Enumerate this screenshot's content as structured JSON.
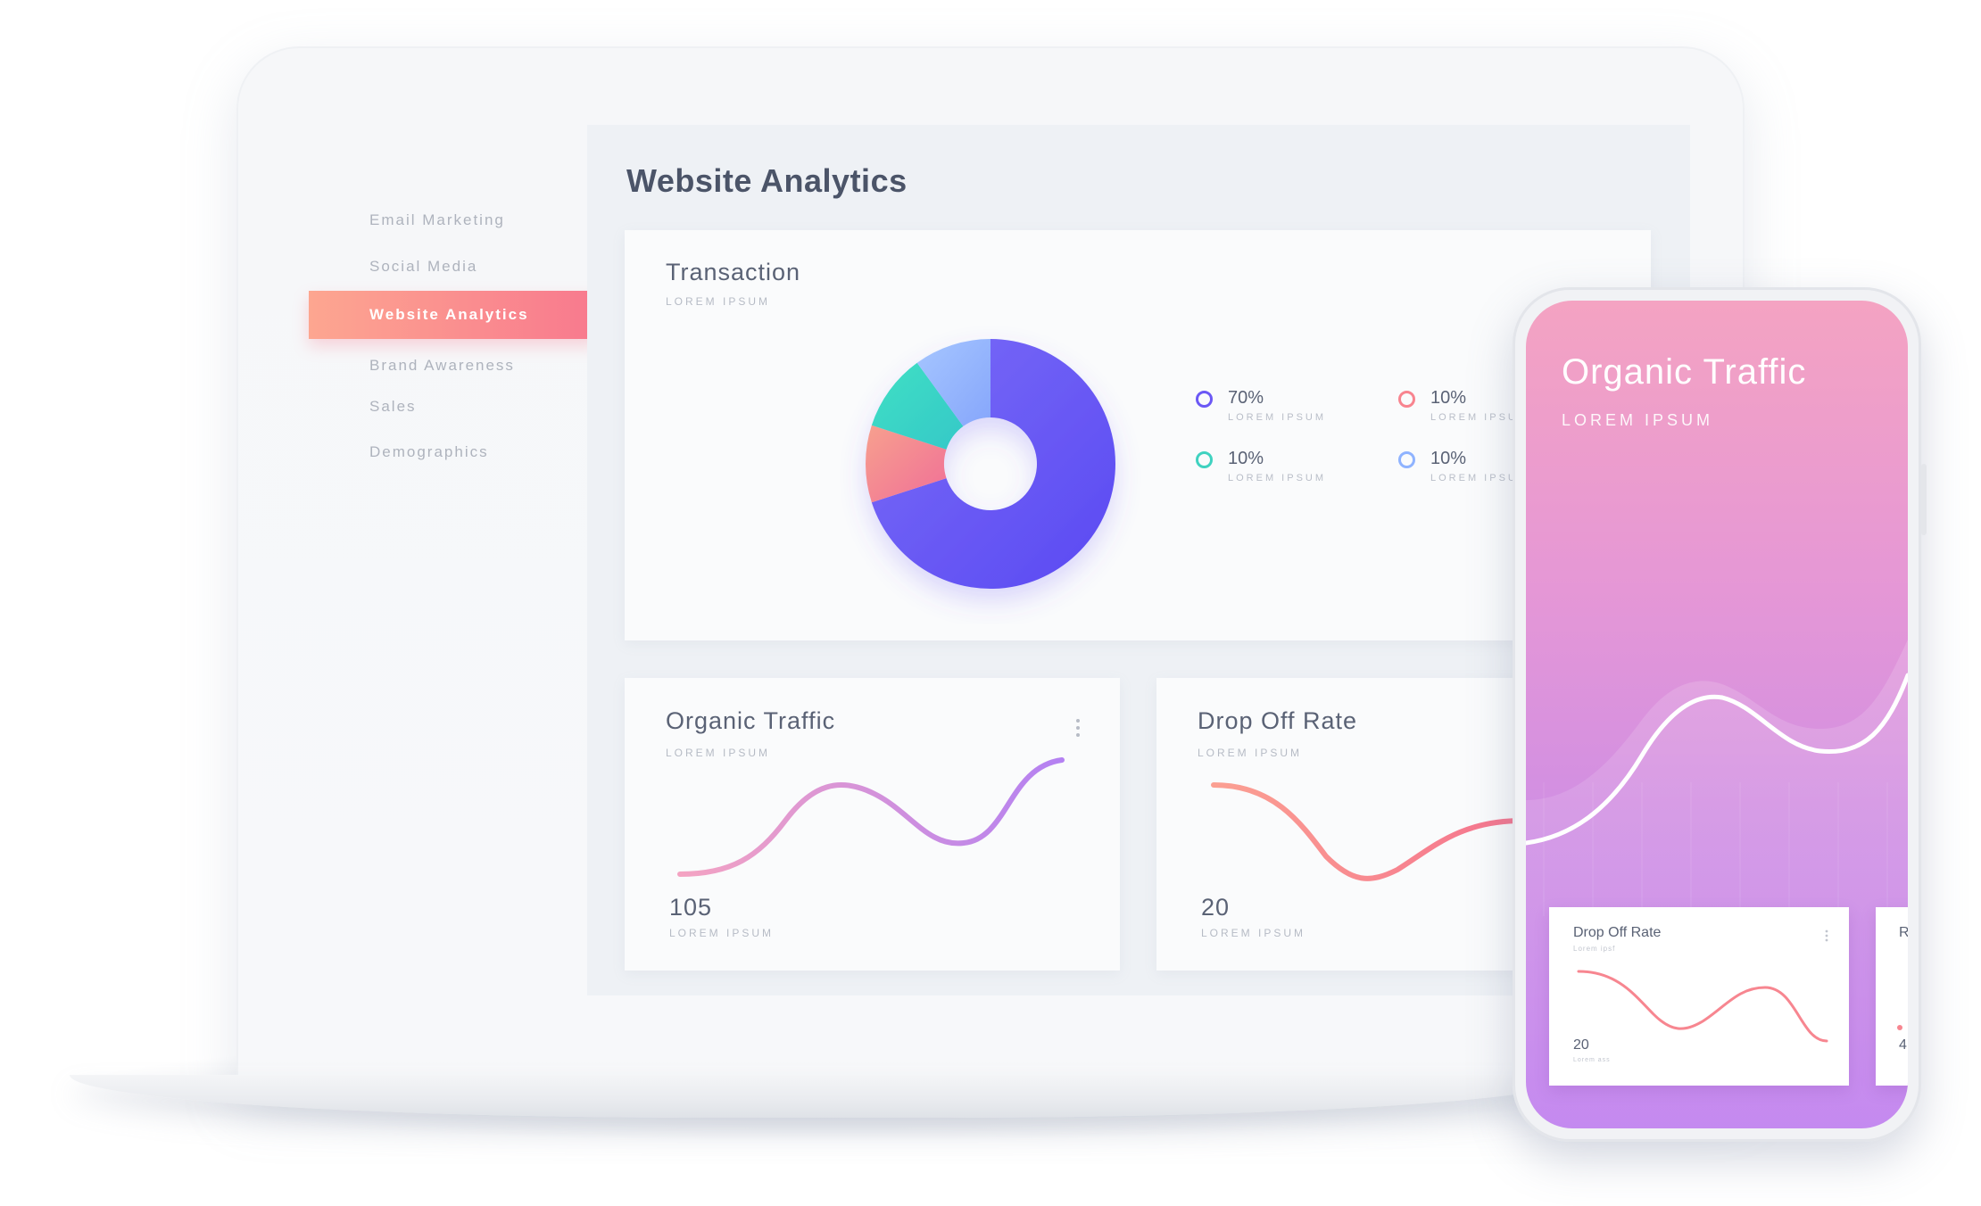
{
  "sidebar": {
    "items": [
      {
        "label": "Email Marketing"
      },
      {
        "label": "Social Media"
      },
      {
        "label": "Website Analytics",
        "active": true
      },
      {
        "label": "Brand Awareness"
      },
      {
        "label": "Sales"
      },
      {
        "label": "Demographics"
      }
    ]
  },
  "main": {
    "title": "Website Analytics",
    "transaction": {
      "title": "Transaction",
      "subtitle": "LOREM IPSUM",
      "legend": [
        {
          "value": "70%",
          "label": "LOREM IPSUM",
          "color": "#6b58f5"
        },
        {
          "value": "10%",
          "label": "LOREM IPSUM",
          "color": "#f8848f"
        },
        {
          "value": "10%",
          "label": "LOREM IPSUM",
          "color": "#3fd2c0"
        },
        {
          "value": "10%",
          "label": "LOREM IPSUM",
          "color": "#8fb3ff"
        }
      ]
    },
    "organic": {
      "title": "Organic Traffic",
      "subtitle": "LOREM IPSUM",
      "value": "105",
      "value_label": "LOREM IPSUM",
      "menu_icon": "more-vertical-icon"
    },
    "dropoff": {
      "title": "Drop Off Rate",
      "subtitle": "LOREM IPSUM",
      "value": "20",
      "value_label": "LOREM IPSUM"
    }
  },
  "phone": {
    "title": "Organic Traffic",
    "subtitle": "LOREM IPSUM",
    "card": {
      "title": "Drop Off Rate",
      "subtitle": "Lorem ipsf",
      "value": "20",
      "value_label": "Lorem ass",
      "menu_icon": "more-vertical-icon"
    },
    "card2": {
      "title": "R",
      "value": "4"
    }
  },
  "colors": {
    "accent_gradient_start": "#fda690",
    "accent_gradient_end": "#f8798e",
    "donut_primary": "#6b58f5",
    "donut_teal": "#3fd2c0",
    "donut_coral": "#f8848f",
    "donut_light_blue": "#8fb3ff"
  },
  "chart_data": {
    "type": "pie",
    "donut": true,
    "categories": [
      "70%",
      "10%",
      "10%",
      "10%"
    ],
    "values": [
      70,
      10,
      10,
      10
    ],
    "colors": [
      "#6b58f5",
      "#f8848f",
      "#3fd2c0",
      "#8fb3ff"
    ]
  }
}
